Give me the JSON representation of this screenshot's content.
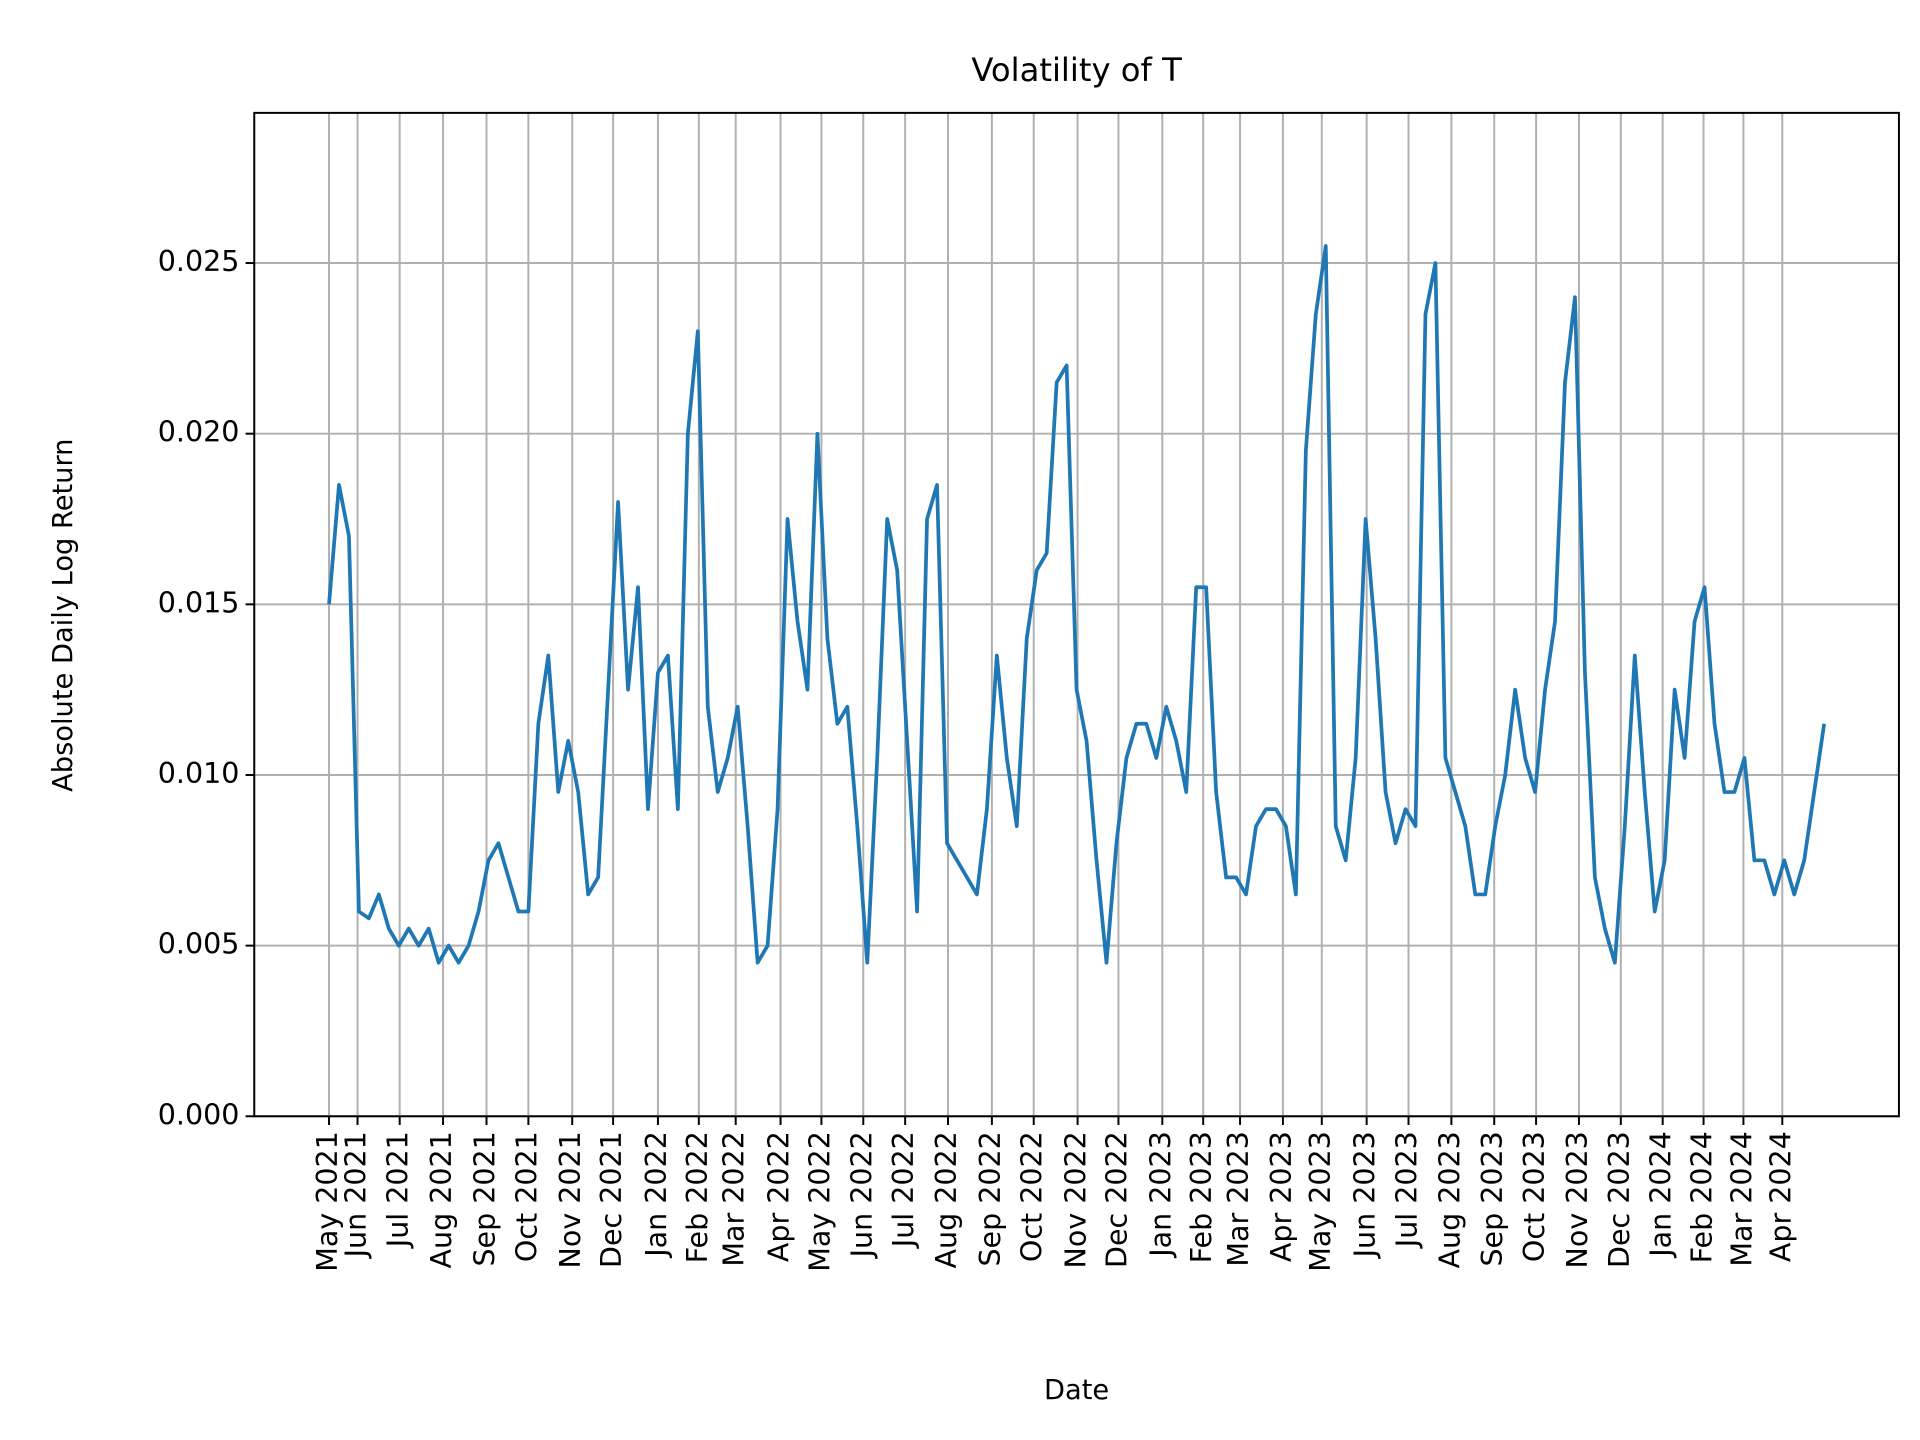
{
  "chart_data": {
    "type": "line",
    "title": "Volatility of T",
    "x_label": "Date",
    "y_label": "Absolute Daily Log Return",
    "color": "#1f77b4",
    "grid": true,
    "ylim": [
      0,
      0.0294
    ],
    "yticks": [
      {
        "value": 0,
        "label": "0.000"
      },
      0.005,
      {
        "value": 0.01,
        "label": "0.010"
      },
      0.015,
      {
        "value": 0.02,
        "label": "0.020"
      },
      0.025
    ],
    "xlim": [
      -7.5,
      157.5
    ],
    "xticks": [
      {
        "value": 0,
        "label": "May 2021"
      },
      {
        "value": 2.86,
        "label": "Jun 2021"
      },
      {
        "value": 7.09,
        "label": "Jul 2021"
      },
      {
        "value": 11.44,
        "label": "Aug 2021"
      },
      {
        "value": 15.8,
        "label": "Sep 2021"
      },
      {
        "value": 20.0,
        "label": "Oct 2021"
      },
      {
        "value": 24.4,
        "label": "Nov 2021"
      },
      {
        "value": 28.5,
        "label": "Dec 2021"
      },
      {
        "value": 33.0,
        "label": "Jan 2022"
      },
      {
        "value": 37.1,
        "label": "Feb 2022"
      },
      {
        "value": 40.8,
        "label": "Mar 2022"
      },
      {
        "value": 45.3,
        "label": "Apr 2022"
      },
      {
        "value": 49.4,
        "label": "May 2022"
      },
      {
        "value": 53.6,
        "label": "Jun 2022"
      },
      {
        "value": 57.8,
        "label": "Jul 2022"
      },
      {
        "value": 62.1,
        "label": "Aug 2022"
      },
      {
        "value": 66.5,
        "label": "Sep 2022"
      },
      {
        "value": 70.7,
        "label": "Oct 2022"
      },
      {
        "value": 75.1,
        "label": "Nov 2022"
      },
      {
        "value": 79.2,
        "label": "Dec 2022"
      },
      {
        "value": 83.6,
        "label": "Jan 2023"
      },
      {
        "value": 87.7,
        "label": "Feb 2023"
      },
      {
        "value": 91.4,
        "label": "Mar 2023"
      },
      {
        "value": 95.7,
        "label": "Apr 2023"
      },
      {
        "value": 99.6,
        "label": "May 2023"
      },
      {
        "value": 104.1,
        "label": "Jun 2023"
      },
      {
        "value": 108.3,
        "label": "Jul 2023"
      },
      {
        "value": 112.6,
        "label": "Aug 2023"
      },
      {
        "value": 116.9,
        "label": "Sep 2023"
      },
      {
        "value": 121.1,
        "label": "Oct 2023"
      },
      {
        "value": 125.4,
        "label": "Nov 2023"
      },
      {
        "value": 129.6,
        "label": "Dec 2023"
      },
      {
        "value": 133.8,
        "label": "Jan 2024"
      },
      {
        "value": 137.9,
        "label": "Feb 2024"
      },
      {
        "value": 141.9,
        "label": "Mar 2024"
      },
      {
        "value": 145.8,
        "label": "Apr 2024"
      }
    ],
    "values": [
      0.015,
      0.0185,
      0.017,
      0.006,
      0.0058,
      0.0065,
      0.0055,
      0.005,
      0.0055,
      0.005,
      0.0055,
      0.0045,
      0.005,
      0.0045,
      0.005,
      0.006,
      0.0075,
      0.008,
      0.007,
      0.006,
      0.006,
      0.0115,
      0.0135,
      0.0095,
      0.011,
      0.0095,
      0.0065,
      0.007,
      0.0125,
      0.018,
      0.0125,
      0.0155,
      0.009,
      0.013,
      0.0135,
      0.009,
      0.02,
      0.023,
      0.012,
      0.0095,
      0.0105,
      0.012,
      0.0085,
      0.0045,
      0.005,
      0.009,
      0.0175,
      0.0145,
      0.0125,
      0.02,
      0.014,
      0.0115,
      0.012,
      0.0085,
      0.0045,
      0.0105,
      0.0175,
      0.016,
      0.011,
      0.006,
      0.0175,
      0.0185,
      0.008,
      0.0075,
      0.007,
      0.0065,
      0.009,
      0.0135,
      0.0105,
      0.0085,
      0.014,
      0.016,
      0.0165,
      0.0215,
      0.022,
      0.0125,
      0.011,
      0.0075,
      0.0045,
      0.008,
      0.0105,
      0.0115,
      0.0115,
      0.0105,
      0.012,
      0.011,
      0.0095,
      0.0155,
      0.0155,
      0.0095,
      0.007,
      0.007,
      0.0065,
      0.0085,
      0.009,
      0.009,
      0.0085,
      0.0065,
      0.0195,
      0.0235,
      0.0255,
      0.0085,
      0.0075,
      0.0105,
      0.0175,
      0.014,
      0.0095,
      0.008,
      0.009,
      0.0085,
      0.0235,
      0.025,
      0.0105,
      0.0095,
      0.0085,
      0.0065,
      0.0065,
      0.0085,
      0.01,
      0.0125,
      0.0105,
      0.0095,
      0.0125,
      0.0145,
      0.0215,
      0.024,
      0.013,
      0.007,
      0.0055,
      0.0045,
      0.0085,
      0.0135,
      0.0095,
      0.006,
      0.0075,
      0.0125,
      0.0105,
      0.0145,
      0.0155,
      0.0115,
      0.0095,
      0.0095,
      0.0105,
      0.0075,
      0.0075,
      0.0065,
      0.0075,
      0.0065,
      0.0075,
      0.0095,
      0.0115
    ]
  }
}
